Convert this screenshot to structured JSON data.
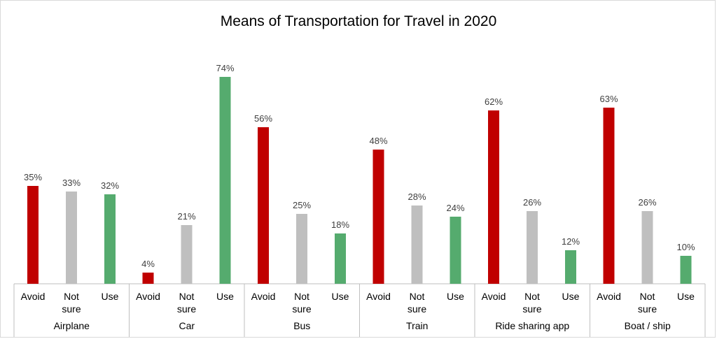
{
  "chart_data": {
    "type": "bar",
    "title": "Means of Transportation for Travel in 2020",
    "xlabel": "",
    "ylabel": "",
    "ylim": [
      0,
      80
    ],
    "value_suffix": "%",
    "colors": {
      "Avoid": "#c00000",
      "Not sure": "#bfbfbf",
      "Use": "#55ab6e"
    },
    "subcategories": [
      {
        "key": "Avoid",
        "lines": [
          "Avoid"
        ]
      },
      {
        "key": "Not sure",
        "lines": [
          "Not",
          "sure"
        ]
      },
      {
        "key": "Use",
        "lines": [
          "Use"
        ]
      }
    ],
    "groups": [
      {
        "name": "Airplane",
        "values": [
          35,
          33,
          32
        ]
      },
      {
        "name": "Car",
        "values": [
          4,
          21,
          74
        ]
      },
      {
        "name": "Bus",
        "values": [
          56,
          25,
          18
        ]
      },
      {
        "name": "Train",
        "values": [
          48,
          28,
          24
        ]
      },
      {
        "name": "Ride sharing app",
        "values": [
          62,
          26,
          12
        ]
      },
      {
        "name": "Boat / ship",
        "values": [
          63,
          26,
          10
        ]
      }
    ]
  }
}
